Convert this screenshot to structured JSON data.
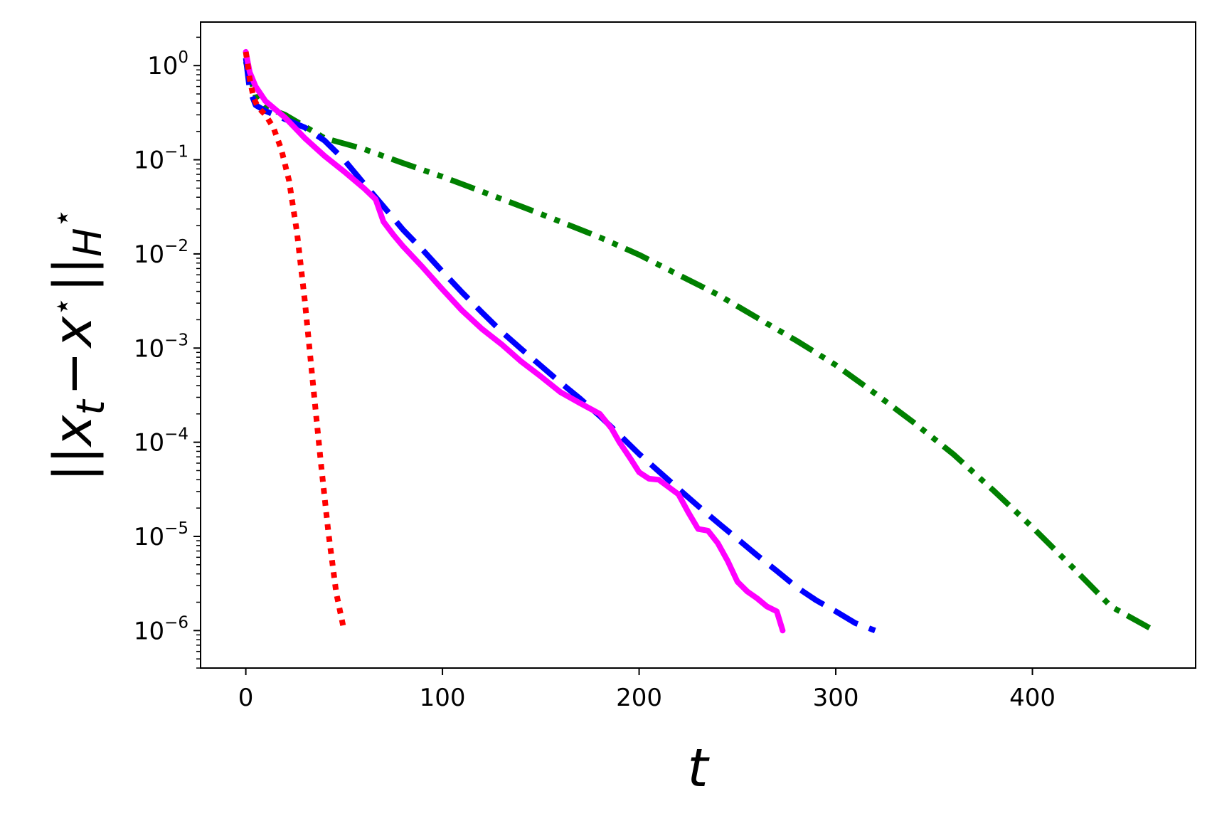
{
  "chart_data": {
    "type": "line",
    "xlabel": "t",
    "ylabel": {
      "delim_open": "||",
      "x": "x",
      "sub": "t",
      "minus": "−",
      "star_x": "x",
      "star": "⋆",
      "delim_close": "||",
      "norm_sub": "H",
      "norm_sup": "⋆"
    },
    "xlim": [
      -23,
      483
    ],
    "ylim": [
      4e-07,
      2.9
    ],
    "yscale": "log",
    "x_ticks": [
      {
        "value": 0,
        "label": "0"
      },
      {
        "value": 100,
        "label": "100"
      },
      {
        "value": 200,
        "label": "200"
      },
      {
        "value": 300,
        "label": "300"
      },
      {
        "value": 400,
        "label": "400"
      }
    ],
    "y_ticks": [
      {
        "value": 1,
        "base": "10",
        "exp": "0"
      },
      {
        "value": 0.1,
        "base": "10",
        "exp": "−1"
      },
      {
        "value": 0.01,
        "base": "10",
        "exp": "−2"
      },
      {
        "value": 0.001,
        "base": "10",
        "exp": "−3"
      },
      {
        "value": 0.0001,
        "base": "10",
        "exp": "−4"
      },
      {
        "value": 1e-05,
        "base": "10",
        "exp": "−5"
      },
      {
        "value": 1e-06,
        "base": "10",
        "exp": "−6"
      }
    ],
    "grid": false,
    "legend": "none",
    "series": [
      {
        "color": "#ff0000",
        "style": "dotted",
        "x": [
          0,
          2,
          4,
          6,
          8,
          10,
          14,
          18,
          22,
          26,
          30,
          34,
          38,
          42,
          46,
          50
        ],
        "y": [
          1.4,
          0.72,
          0.45,
          0.37,
          0.33,
          0.3,
          0.22,
          0.13,
          0.06,
          0.017,
          0.0032,
          0.00045,
          6.5e-05,
          1.1e-05,
          2.5e-06,
          1e-06
        ]
      },
      {
        "color": "#ff00ff",
        "style": "solid",
        "x": [
          0,
          2,
          5,
          10,
          20,
          30,
          40,
          50,
          60,
          66,
          70,
          75,
          80,
          90,
          100,
          110,
          120,
          130,
          140,
          150,
          160,
          170,
          180,
          186,
          190,
          195,
          200,
          205,
          210,
          220,
          225,
          230,
          235,
          240,
          245,
          250,
          255,
          260,
          265,
          270,
          273
        ],
        "y": [
          1.4,
          0.85,
          0.6,
          0.42,
          0.28,
          0.17,
          0.11,
          0.075,
          0.05,
          0.038,
          0.022,
          0.016,
          0.012,
          0.0072,
          0.0042,
          0.0025,
          0.0016,
          0.0011,
          0.00072,
          0.0005,
          0.00034,
          0.00026,
          0.0002,
          0.00014,
          0.0001,
          7e-05,
          4.8e-05,
          4.1e-05,
          4e-05,
          2.8e-05,
          1.8e-05,
          1.2e-05,
          1.15e-05,
          8.5e-06,
          5.5e-06,
          3.3e-06,
          2.6e-06,
          2.2e-06,
          1.8e-06,
          1.6e-06,
          1e-06
        ]
      },
      {
        "color": "#0000ff",
        "style": "dashed",
        "x": [
          0,
          2,
          5,
          10,
          20,
          30,
          40,
          50,
          60,
          70,
          80,
          90,
          100,
          110,
          120,
          130,
          140,
          150,
          160,
          170,
          180,
          190,
          200,
          210,
          220,
          230,
          240,
          250,
          260,
          270,
          280,
          290,
          300,
          310,
          320
        ],
        "y": [
          1.2,
          0.55,
          0.38,
          0.33,
          0.27,
          0.22,
          0.16,
          0.1,
          0.056,
          0.032,
          0.018,
          0.011,
          0.0065,
          0.0039,
          0.0024,
          0.0015,
          0.00098,
          0.00065,
          0.00043,
          0.00029,
          0.00019,
          0.00012,
          7.5e-05,
          4.9e-05,
          3.2e-05,
          2.1e-05,
          1.4e-05,
          9.4e-06,
          6.3e-06,
          4.3e-06,
          2.9e-06,
          2.1e-06,
          1.6e-06,
          1.2e-06,
          1e-06
        ]
      },
      {
        "color": "#008000",
        "style": "dashdot",
        "x": [
          0,
          5,
          10,
          20,
          40,
          60,
          80,
          100,
          120,
          140,
          160,
          180,
          200,
          220,
          240,
          260,
          280,
          300,
          320,
          340,
          360,
          380,
          400,
          420,
          440,
          462
        ],
        "y": [
          1.1,
          0.48,
          0.36,
          0.3,
          0.17,
          0.13,
          0.092,
          0.066,
          0.046,
          0.032,
          0.022,
          0.015,
          0.0098,
          0.006,
          0.0037,
          0.0021,
          0.0012,
          0.00066,
          0.00033,
          0.00016,
          7.4e-05,
          3.1e-05,
          1.25e-05,
          4.8e-06,
          1.8e-06,
          1e-06
        ]
      }
    ]
  }
}
